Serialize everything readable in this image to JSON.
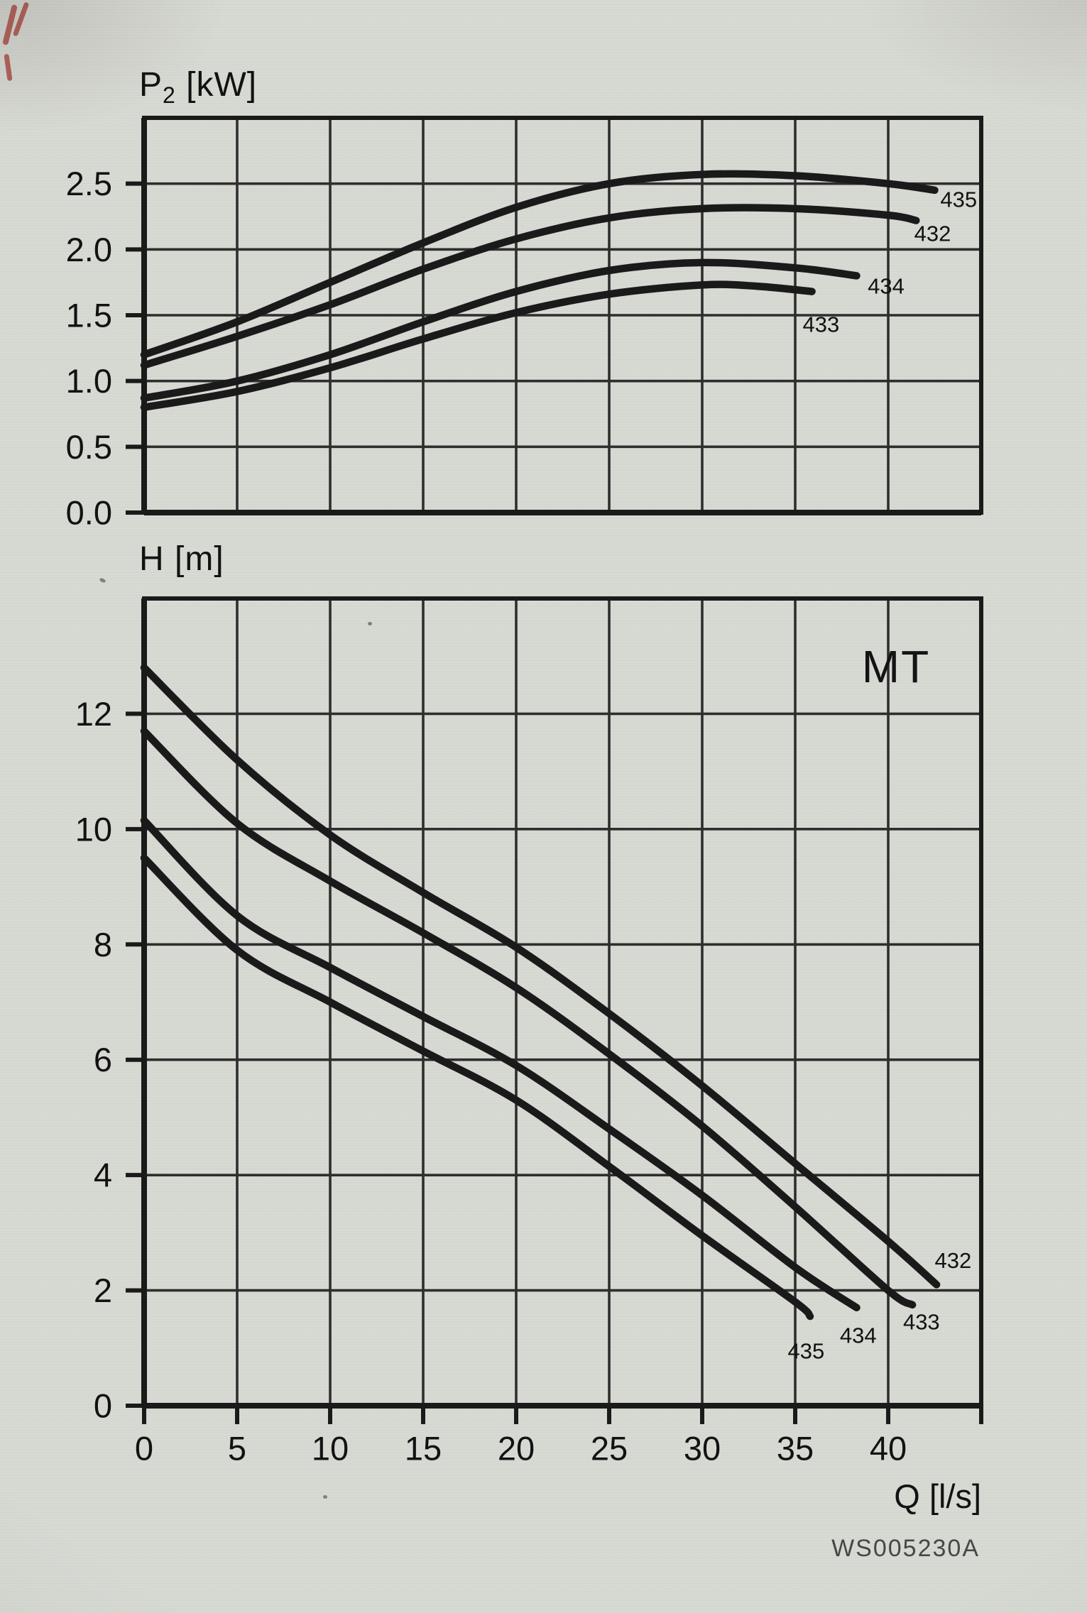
{
  "page": {
    "watermark": "WS005230A",
    "colors": {
      "background": "#d6d8d2",
      "line": "#1a1a1a",
      "grid": "#2e2e2e",
      "text": "#121212",
      "watermark_text": "#474747",
      "red_mark": "#a63b32"
    }
  },
  "chart_data": [
    {
      "id": "power",
      "type": "line",
      "title": {
        "base": "P",
        "sub": "2",
        "unit": " [kW]"
      },
      "ylabel": "P2 [kW]",
      "xlabel": "",
      "xlim": [
        0,
        45
      ],
      "ylim": [
        0,
        3
      ],
      "x_grid_step": 5,
      "y_grid_step": 0.5,
      "grid": true,
      "y_ticks": [
        {
          "value": 0,
          "label": "0.0"
        },
        {
          "value": 0.5,
          "label": "0.5"
        },
        {
          "value": 1,
          "label": "1.0"
        },
        {
          "value": 1.5,
          "label": "1.5"
        },
        {
          "value": 2,
          "label": "2.0"
        },
        {
          "value": 2.5,
          "label": "2.5"
        }
      ],
      "x_ticks": [],
      "series": [
        {
          "name": "435",
          "label_at": [
            42.8,
            2.38
          ],
          "points": [
            [
              0,
              1.2
            ],
            [
              5,
              1.45
            ],
            [
              10,
              1.75
            ],
            [
              15,
              2.05
            ],
            [
              20,
              2.32
            ],
            [
              25,
              2.5
            ],
            [
              30,
              2.57
            ],
            [
              35,
              2.56
            ],
            [
              40,
              2.5
            ],
            [
              42.5,
              2.45
            ]
          ]
        },
        {
          "name": "432",
          "label_at": [
            41.4,
            2.12
          ],
          "points": [
            [
              0,
              1.12
            ],
            [
              5,
              1.34
            ],
            [
              10,
              1.58
            ],
            [
              15,
              1.85
            ],
            [
              20,
              2.08
            ],
            [
              25,
              2.24
            ],
            [
              30,
              2.31
            ],
            [
              35,
              2.31
            ],
            [
              40,
              2.26
            ],
            [
              41.5,
              2.22
            ]
          ]
        },
        {
          "name": "434",
          "label_at": [
            38.9,
            1.72
          ],
          "points": [
            [
              0,
              0.87
            ],
            [
              5,
              1.0
            ],
            [
              10,
              1.2
            ],
            [
              15,
              1.45
            ],
            [
              20,
              1.68
            ],
            [
              25,
              1.84
            ],
            [
              30,
              1.9
            ],
            [
              35,
              1.86
            ],
            [
              38.3,
              1.8
            ]
          ]
        },
        {
          "name": "433",
          "label_at": [
            35.4,
            1.43
          ],
          "points": [
            [
              0,
              0.8
            ],
            [
              5,
              0.92
            ],
            [
              10,
              1.1
            ],
            [
              15,
              1.32
            ],
            [
              20,
              1.52
            ],
            [
              25,
              1.66
            ],
            [
              30,
              1.73
            ],
            [
              33,
              1.72
            ],
            [
              35.9,
              1.68
            ]
          ]
        }
      ]
    },
    {
      "id": "head",
      "type": "line",
      "title": {
        "base": "H",
        "sub": "",
        "unit": " [m]"
      },
      "ylabel": "H [m]",
      "xlabel": "Q [l/s]",
      "corner_label": "MT",
      "xlim": [
        0,
        45
      ],
      "ylim": [
        0,
        14
      ],
      "x_grid_step": 5,
      "y_grid_step": 2,
      "grid": true,
      "y_ticks": [
        {
          "value": 0,
          "label": "0"
        },
        {
          "value": 2,
          "label": "2"
        },
        {
          "value": 4,
          "label": "4"
        },
        {
          "value": 6,
          "label": "6"
        },
        {
          "value": 8,
          "label": "8"
        },
        {
          "value": 10,
          "label": "10"
        },
        {
          "value": 12,
          "label": "12"
        }
      ],
      "x_ticks": [
        {
          "value": 0,
          "label": "0"
        },
        {
          "value": 5,
          "label": "5"
        },
        {
          "value": 10,
          "label": "10"
        },
        {
          "value": 15,
          "label": "15"
        },
        {
          "value": 20,
          "label": "20"
        },
        {
          "value": 25,
          "label": "25"
        },
        {
          "value": 30,
          "label": "30"
        },
        {
          "value": 35,
          "label": "35"
        },
        {
          "value": 40,
          "label": "40"
        }
      ],
      "series": [
        {
          "name": "432",
          "label_at": [
            42.5,
            2.52
          ],
          "points": [
            [
              0,
              12.8
            ],
            [
              5,
              11.2
            ],
            [
              10,
              9.9
            ],
            [
              15,
              8.9
            ],
            [
              20,
              7.95
            ],
            [
              25,
              6.8
            ],
            [
              30,
              5.55
            ],
            [
              35,
              4.2
            ],
            [
              40,
              2.85
            ],
            [
              42.6,
              2.1
            ]
          ]
        },
        {
          "name": "433",
          "label_at": [
            40.8,
            1.45
          ],
          "points": [
            [
              0,
              11.7
            ],
            [
              5,
              10.1
            ],
            [
              10,
              9.1
            ],
            [
              15,
              8.2
            ],
            [
              20,
              7.25
            ],
            [
              25,
              6.1
            ],
            [
              30,
              4.85
            ],
            [
              35,
              3.45
            ],
            [
              40,
              2.0
            ],
            [
              41.3,
              1.75
            ]
          ]
        },
        {
          "name": "434",
          "label_at": [
            37.4,
            1.22
          ],
          "points": [
            [
              0,
              10.15
            ],
            [
              5,
              8.5
            ],
            [
              10,
              7.6
            ],
            [
              15,
              6.75
            ],
            [
              20,
              5.9
            ],
            [
              25,
              4.8
            ],
            [
              30,
              3.65
            ],
            [
              35,
              2.4
            ],
            [
              38.3,
              1.7
            ]
          ]
        },
        {
          "name": "435",
          "label_at": [
            34.6,
            0.95
          ],
          "points": [
            [
              0,
              9.5
            ],
            [
              5,
              7.9
            ],
            [
              10,
              7.0
            ],
            [
              15,
              6.15
            ],
            [
              20,
              5.3
            ],
            [
              25,
              4.15
            ],
            [
              30,
              2.95
            ],
            [
              35,
              1.8
            ],
            [
              35.8,
              1.55
            ]
          ]
        }
      ]
    }
  ]
}
